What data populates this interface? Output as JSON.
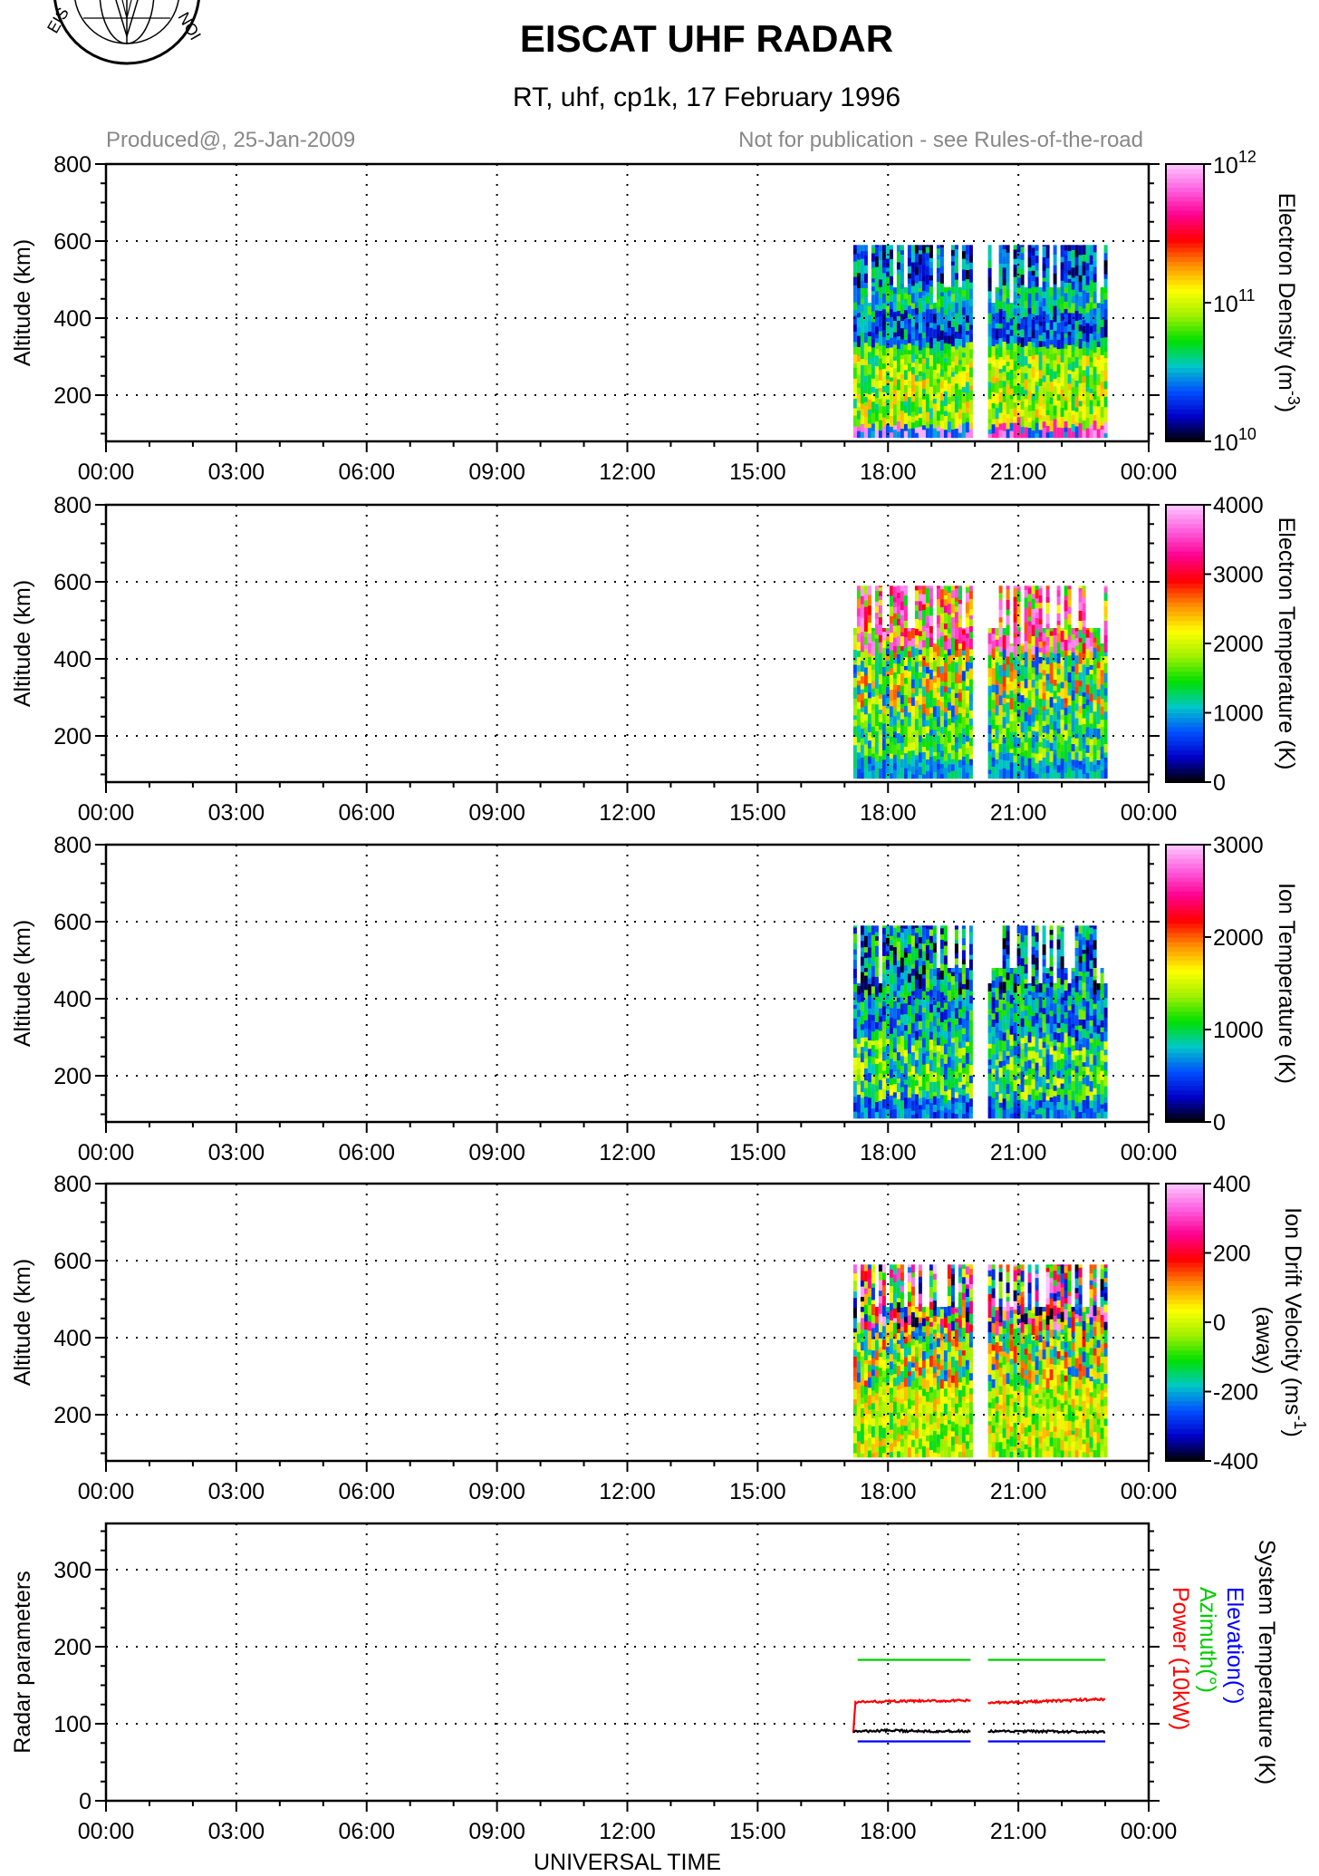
{
  "header": {
    "title": "EISCAT UHF RADAR",
    "subtitle": "RT, uhf, cp1k, 17 February 1996",
    "produced": "Produced@, 25-Jan-2009",
    "disclaimer": "Not for publication - see Rules-of-the-road"
  },
  "x_ticks": [
    "00:00",
    "03:00",
    "06:00",
    "09:00",
    "12:00",
    "15:00",
    "18:00",
    "21:00",
    "00:00"
  ],
  "x_label": "UNIVERSAL TIME",
  "y_label": "Altitude (km)",
  "alt_ticks": [
    "200",
    "400",
    "600",
    "800"
  ],
  "colors": {
    "colormap": [
      "#000000",
      "#0000c8",
      "#0050ff",
      "#00c8c8",
      "#00e000",
      "#a0f000",
      "#ffff00",
      "#ff9000",
      "#ff0000",
      "#ff0090",
      "#ff60e0",
      "#ffc8ff"
    ],
    "grid": "#000000",
    "power": "#ff0000",
    "azimuth": "#00cc00",
    "elevation": "#0000ff",
    "system_temperature": "#000000"
  },
  "chart_data": [
    {
      "type": "heatmap",
      "parameter": "Electron Density",
      "colorbar_label": "Electron Density (m",
      "colorbar_label_sup": "-3",
      "colorbar_label_end": ")",
      "colorbar_scale": "log",
      "colorbar_range": [
        10000000000.0,
        1000000000000.0
      ],
      "colorbar_ticks": [
        {
          "base": "10",
          "exp": "10"
        },
        {
          "base": "10",
          "exp": "11"
        },
        {
          "base": "10",
          "exp": "12"
        }
      ],
      "xlim_hours": [
        0,
        24
      ],
      "ylim_km": [
        80,
        800
      ],
      "data_blocks_hours": [
        [
          17.2,
          19.9
        ],
        [
          20.3,
          23.0
        ]
      ],
      "altitude_top_km": 590,
      "pattern": "density"
    },
    {
      "type": "heatmap",
      "parameter": "Electron Temperature",
      "colorbar_label": "Electron Temperature (K)",
      "colorbar_range": [
        0,
        4000
      ],
      "colorbar_ticks": [
        "0",
        "1000",
        "2000",
        "3000",
        "4000"
      ],
      "xlim_hours": [
        0,
        24
      ],
      "ylim_km": [
        80,
        800
      ],
      "data_blocks_hours": [
        [
          17.2,
          19.9
        ],
        [
          20.3,
          23.0
        ]
      ],
      "altitude_top_km": 590,
      "pattern": "te"
    },
    {
      "type": "heatmap",
      "parameter": "Ion Temperature",
      "colorbar_label": "Ion Temperature (K)",
      "colorbar_range": [
        0,
        3000
      ],
      "colorbar_ticks": [
        "0",
        "1000",
        "2000",
        "3000"
      ],
      "xlim_hours": [
        0,
        24
      ],
      "ylim_km": [
        80,
        800
      ],
      "data_blocks_hours": [
        [
          17.2,
          19.9
        ],
        [
          20.3,
          23.0
        ]
      ],
      "altitude_top_km": 590,
      "pattern": "ti"
    },
    {
      "type": "heatmap",
      "parameter": "Ion Drift Velocity",
      "colorbar_label": "Ion Drift Velocity (ms",
      "colorbar_label_sup": "-1",
      "colorbar_label_end": ")",
      "colorbar_label_line2": "(away)",
      "colorbar_range": [
        -400,
        400
      ],
      "colorbar_ticks": [
        "-400",
        "-200",
        "0",
        "200",
        "400"
      ],
      "xlim_hours": [
        0,
        24
      ],
      "ylim_km": [
        80,
        800
      ],
      "data_blocks_hours": [
        [
          17.2,
          19.9
        ],
        [
          20.3,
          23.0
        ]
      ],
      "altitude_top_km": 590,
      "pattern": "vi"
    },
    {
      "type": "line",
      "ylabel": "Radar parameters",
      "ylim": [
        0,
        360
      ],
      "y_ticks": [
        "0",
        "100",
        "200",
        "300"
      ],
      "xlim_hours": [
        0,
        24
      ],
      "legend": [
        {
          "name": "System Temperature (K)",
          "color": "#000000"
        },
        {
          "name": "Elevation(°)",
          "color": "#0000ff"
        },
        {
          "name": "Azimuth(°)",
          "color": "#00cc00"
        },
        {
          "name": "Power (10kW)",
          "color": "#ff0000"
        }
      ],
      "series": [
        {
          "name": "Azimuth(°)",
          "color": "#00cc00",
          "segments": [
            [
              [
                17.3,
                183
              ],
              [
                19.9,
                183
              ]
            ],
            [
              [
                20.3,
                183
              ],
              [
                23.0,
                183
              ]
            ]
          ]
        },
        {
          "name": "Elevation(°)",
          "color": "#0000ff",
          "segments": [
            [
              [
                17.3,
                77
              ],
              [
                19.9,
                77
              ]
            ],
            [
              [
                20.3,
                77
              ],
              [
                23.0,
                77
              ]
            ]
          ]
        },
        {
          "name": "Power (10kW)",
          "color": "#ff0000",
          "segments": [
            [
              [
                17.2,
                88
              ],
              [
                17.25,
                128
              ],
              [
                18.0,
                129
              ],
              [
                19.9,
                130
              ]
            ],
            [
              [
                20.3,
                127
              ],
              [
                21.5,
                129
              ],
              [
                23.0,
                132
              ]
            ]
          ]
        },
        {
          "name": "System Temperature (K)",
          "color": "#000000",
          "segments": [
            [
              [
                17.2,
                90
              ],
              [
                18.0,
                91
              ],
              [
                19.9,
                90
              ]
            ],
            [
              [
                20.3,
                90
              ],
              [
                21.5,
                90
              ],
              [
                23.0,
                89
              ]
            ]
          ]
        }
      ]
    }
  ]
}
